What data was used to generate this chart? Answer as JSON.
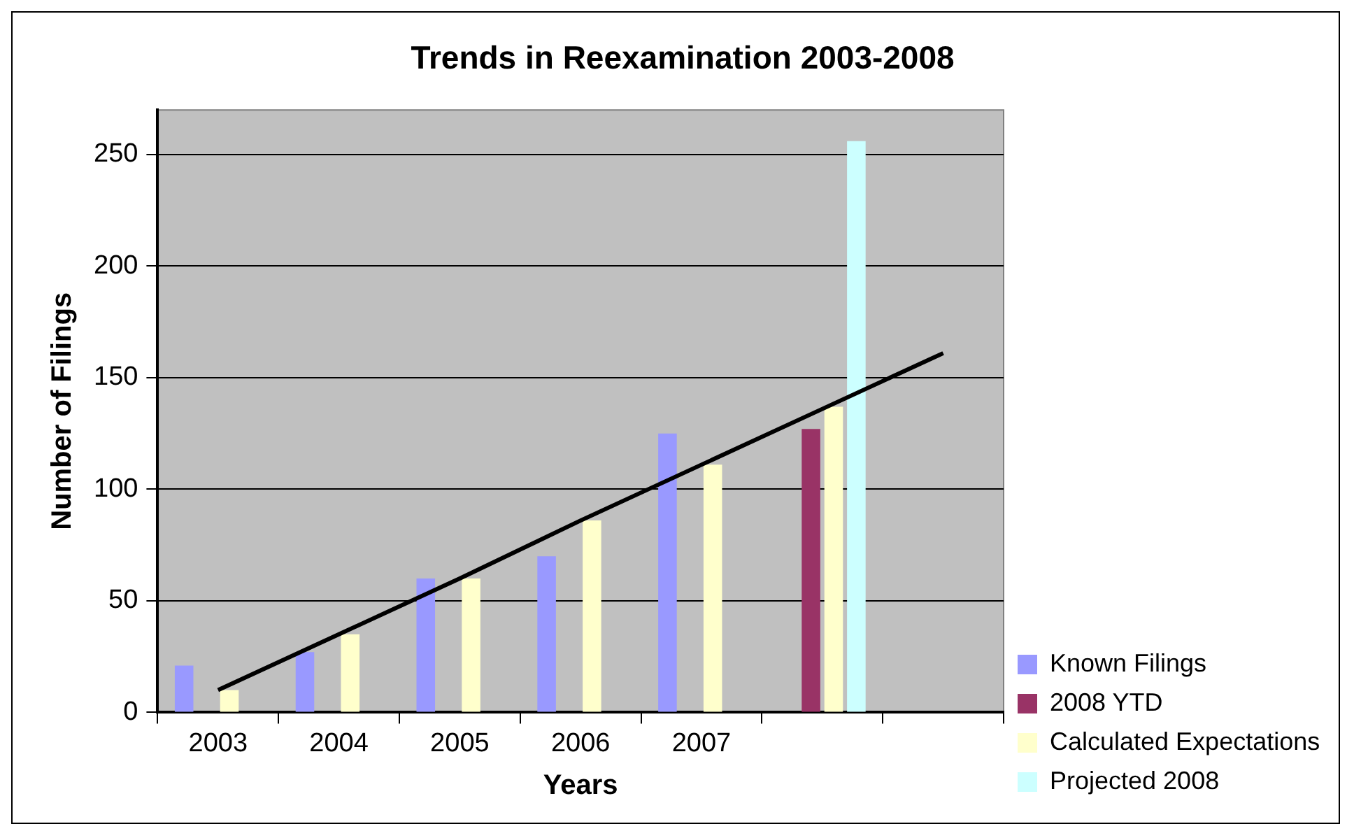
{
  "chart_data": {
    "type": "bar",
    "title": "Trends in Reexamination 2003-2008",
    "xlabel": "Years",
    "ylabel": "Number of Filings",
    "categories": [
      "2003",
      "2004",
      "2005",
      "2006",
      "2007",
      null,
      null
    ],
    "series": [
      {
        "name": "Known Filings",
        "color": "#9999ff",
        "values": [
          21,
          27,
          60,
          70,
          125,
          null,
          null
        ]
      },
      {
        "name": "2008 YTD",
        "color": "#993366",
        "values": [
          null,
          null,
          null,
          null,
          null,
          127,
          null
        ]
      },
      {
        "name": "Calculated Expectations",
        "color": "#ffffcc",
        "values": [
          10,
          35,
          60,
          86,
          111,
          137,
          null
        ]
      },
      {
        "name": "Projected 2008",
        "color": "#ccffff",
        "values": [
          null,
          null,
          null,
          null,
          null,
          256,
          null
        ]
      },
      {
        "type": "line",
        "color": "#000000",
        "values": [
          10,
          35,
          60,
          86,
          111,
          136,
          161
        ],
        "marker": "none"
      }
    ],
    "ylim": [
      0,
      270
    ],
    "yticks": [
      0,
      50,
      100,
      150,
      200,
      250
    ],
    "grid": "y",
    "legend": "bottom right"
  }
}
